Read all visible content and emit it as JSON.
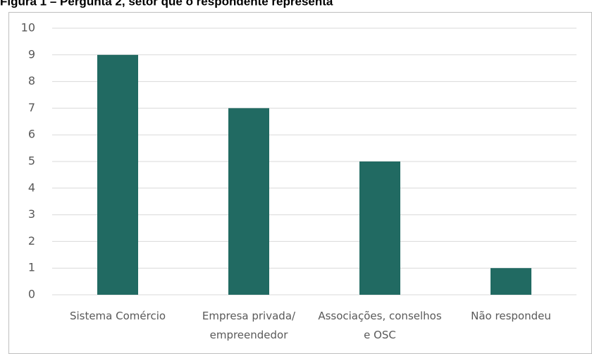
{
  "chart_data": {
    "type": "bar",
    "title": "Figura 1 – Pergunta 2, setor que o respondente representa",
    "categories": [
      "Sistema Comércio",
      "Empresa privada/ empreendedor",
      "Associações, conselhos e OSC",
      "Não respondeu"
    ],
    "values": [
      9,
      7,
      5,
      1
    ],
    "color": "#216a62",
    "ylim": [
      0,
      10
    ],
    "yticks": [
      0,
      1,
      2,
      3,
      4,
      5,
      6,
      7,
      8,
      9,
      10
    ],
    "grid": true
  }
}
